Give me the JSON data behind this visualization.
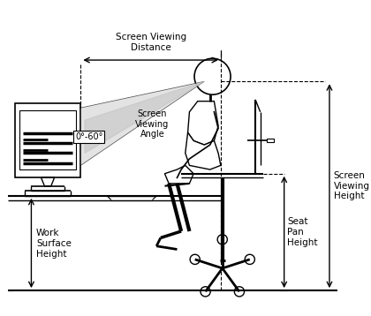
{
  "title": "",
  "bg_color": "#ffffff",
  "line_color": "#000000",
  "gray_color": "#c0c0c0",
  "light_gray": "#d8d8d8",
  "labels": {
    "screen_viewing_distance": "Screen Viewing\nDistance",
    "screen_viewing_angle": "Screen\nViewing\nAngle",
    "angle_value": "0°-60°",
    "screen_viewing_height": "Screen\nViewing\nHeight",
    "work_surface_height": "Work\nSurface\nHeight",
    "seat_pan_height": "Seat\nPan\nHeight"
  }
}
